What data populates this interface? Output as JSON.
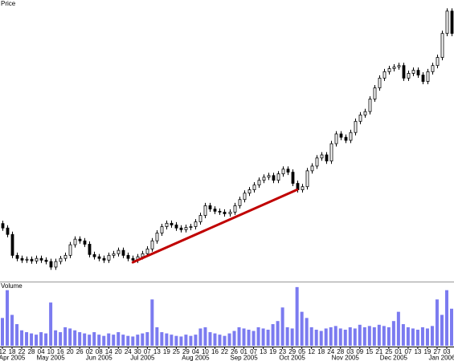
{
  "chart_data": {
    "type": "candlestick",
    "price_label": "Price",
    "volume_label": "Volume",
    "categories": [
      "12",
      null,
      "18",
      null,
      "22",
      null,
      "28",
      null,
      "04",
      null,
      "10",
      null,
      "16",
      null,
      "20",
      null,
      "26",
      null,
      "02",
      null,
      "08",
      null,
      "14",
      null,
      "20",
      null,
      "24",
      null,
      "30",
      null,
      "07",
      null,
      "13",
      null,
      "19",
      null,
      "25",
      null,
      "29",
      null,
      "04",
      null,
      "10",
      null,
      "16",
      null,
      "22",
      null,
      "26",
      null,
      "01",
      null,
      "07",
      null,
      "13",
      null,
      "19",
      null,
      "23",
      null,
      "29",
      null,
      "05",
      null,
      "12",
      null,
      "18",
      null,
      "24",
      null,
      "28",
      null,
      "03",
      null,
      "09",
      null,
      "15",
      null,
      "21",
      null,
      "25",
      null,
      "01",
      null,
      "07",
      null,
      "13",
      null,
      "19",
      null,
      "27",
      null,
      "03",
      null
    ],
    "months": [
      null,
      null,
      "Apr 2005",
      null,
      null,
      null,
      null,
      null,
      null,
      null,
      "May 2005",
      null,
      null,
      null,
      null,
      null,
      null,
      null,
      null,
      null,
      "Jun 2005",
      null,
      null,
      null,
      null,
      null,
      null,
      null,
      null,
      "Jul 2005",
      null,
      null,
      null,
      null,
      null,
      null,
      null,
      null,
      null,
      null,
      "Aug 2005",
      null,
      null,
      null,
      null,
      null,
      null,
      null,
      null,
      null,
      "Sep 2005",
      null,
      null,
      null,
      null,
      null,
      null,
      null,
      null,
      null,
      "Oct 2005",
      null,
      null,
      null,
      null,
      null,
      null,
      null,
      null,
      null,
      null,
      "Nov 2005",
      null,
      null,
      null,
      null,
      null,
      null,
      null,
      null,
      null,
      "Dec 2005",
      null,
      null,
      null,
      null,
      null,
      null,
      null,
      null,
      null,
      "Jan 2006",
      null,
      null
    ],
    "open": [
      20.5,
      18.9,
      16.6,
      9.1,
      8.0,
      7.4,
      7.7,
      7.1,
      8.0,
      7.4,
      6.9,
      4.9,
      6.9,
      8.0,
      9.1,
      12.9,
      14.9,
      14.3,
      13.1,
      9.4,
      8.6,
      8.0,
      7.4,
      9.1,
      9.7,
      10.9,
      9.1,
      8.0,
      7.4,
      8.6,
      9.7,
      11.4,
      14.3,
      17.1,
      19.4,
      20.6,
      20.0,
      18.9,
      18.3,
      19.1,
      19.4,
      21.1,
      23.4,
      26.9,
      25.7,
      24.9,
      24.6,
      24.0,
      24.6,
      26.9,
      29.1,
      31.4,
      32.6,
      34.3,
      36.0,
      37.1,
      37.7,
      36.0,
      38.3,
      40.0,
      38.9,
      34.9,
      32.6,
      33.7,
      39.4,
      41.1,
      44.0,
      45.1,
      42.9,
      49.1,
      52.6,
      51.4,
      50.3,
      53.1,
      57.1,
      59.4,
      60.6,
      65.1,
      69.1,
      72.6,
      74.9,
      76.0,
      76.6,
      77.1,
      72.6,
      74.3,
      75.4,
      73.7,
      71.4,
      74.9,
      77.1,
      80.0,
      88.6,
      96.6
    ],
    "high": [
      21.5,
      19.9,
      17.6,
      10.1,
      9.0,
      8.7,
      8.7,
      9.0,
      9.0,
      8.4,
      7.9,
      7.9,
      8.9,
      10.1,
      13.9,
      15.9,
      15.9,
      15.3,
      14.1,
      10.4,
      9.6,
      9.0,
      10.1,
      10.7,
      11.9,
      11.9,
      10.1,
      9.0,
      9.6,
      10.7,
      12.4,
      15.3,
      18.1,
      20.4,
      21.6,
      21.6,
      21.0,
      19.9,
      20.1,
      20.4,
      22.1,
      24.4,
      27.9,
      27.9,
      26.7,
      25.9,
      25.6,
      25.6,
      27.9,
      30.1,
      32.4,
      33.6,
      35.3,
      37.0,
      38.1,
      38.7,
      38.7,
      39.3,
      41.0,
      41.0,
      39.9,
      35.9,
      34.7,
      40.4,
      42.1,
      45.0,
      46.1,
      46.1,
      50.1,
      53.6,
      53.6,
      52.4,
      54.1,
      58.1,
      60.4,
      61.6,
      66.1,
      70.1,
      73.6,
      75.9,
      77.0,
      77.6,
      78.1,
      78.1,
      75.3,
      76.4,
      76.4,
      74.7,
      75.9,
      78.1,
      81.0,
      89.6,
      97.6,
      97.6
    ],
    "low": [
      17.9,
      15.6,
      8.1,
      7.0,
      6.4,
      6.4,
      6.1,
      6.1,
      6.4,
      5.9,
      3.9,
      3.9,
      5.9,
      7.0,
      8.1,
      11.9,
      13.3,
      12.1,
      8.4,
      7.6,
      7.0,
      6.4,
      6.4,
      8.1,
      8.7,
      8.1,
      7.0,
      6.4,
      6.4,
      7.6,
      8.7,
      10.4,
      13.3,
      16.1,
      18.4,
      19.0,
      17.9,
      17.3,
      17.3,
      18.1,
      18.4,
      20.1,
      22.4,
      24.7,
      23.9,
      23.6,
      23.0,
      23.0,
      23.6,
      25.9,
      28.1,
      30.4,
      31.6,
      33.3,
      35.0,
      36.1,
      35.0,
      35.0,
      37.3,
      37.9,
      33.9,
      31.6,
      31.6,
      32.7,
      38.4,
      40.1,
      43.0,
      41.9,
      41.9,
      48.1,
      50.4,
      49.3,
      49.3,
      52.1,
      56.1,
      58.4,
      59.6,
      64.1,
      68.1,
      71.6,
      73.9,
      75.0,
      75.6,
      71.6,
      71.6,
      73.3,
      72.7,
      70.4,
      70.4,
      73.9,
      76.1,
      79.0,
      87.6,
      87.6
    ],
    "close": [
      18.9,
      16.6,
      9.1,
      8.0,
      7.4,
      7.7,
      7.1,
      8.0,
      7.4,
      6.9,
      4.9,
      6.9,
      8.0,
      9.1,
      12.9,
      14.9,
      14.3,
      13.1,
      9.4,
      8.6,
      8.0,
      7.4,
      9.1,
      9.7,
      10.9,
      9.1,
      8.0,
      7.4,
      8.6,
      9.7,
      11.4,
      14.3,
      17.1,
      19.4,
      20.6,
      20.0,
      18.9,
      18.3,
      19.1,
      19.4,
      21.1,
      23.4,
      26.9,
      25.7,
      24.9,
      24.6,
      24.0,
      24.6,
      26.9,
      29.1,
      31.4,
      32.6,
      34.3,
      36.0,
      37.1,
      37.7,
      36.0,
      38.3,
      40.0,
      38.9,
      34.9,
      32.6,
      33.7,
      39.4,
      41.1,
      44.0,
      45.1,
      42.9,
      49.1,
      52.6,
      51.4,
      50.3,
      53.1,
      57.1,
      59.4,
      60.6,
      65.1,
      69.1,
      72.6,
      74.9,
      76.0,
      76.6,
      77.1,
      72.6,
      74.3,
      75.4,
      73.7,
      71.4,
      74.9,
      77.1,
      80.0,
      88.6,
      96.6,
      88.6
    ],
    "volume": [
      45,
      90,
      50,
      35,
      25,
      22,
      20,
      18,
      22,
      20,
      70,
      25,
      22,
      30,
      28,
      25,
      22,
      20,
      18,
      22,
      18,
      16,
      20,
      18,
      22,
      18,
      16,
      15,
      18,
      20,
      22,
      75,
      30,
      22,
      20,
      18,
      16,
      15,
      18,
      16,
      18,
      28,
      30,
      22,
      20,
      18,
      16,
      20,
      24,
      30,
      28,
      26,
      24,
      30,
      28,
      26,
      35,
      40,
      62,
      30,
      28,
      95,
      55,
      45,
      30,
      26,
      24,
      28,
      30,
      32,
      28,
      26,
      30,
      28,
      34,
      30,
      32,
      30,
      34,
      32,
      30,
      40,
      55,
      35,
      30,
      28,
      26,
      30,
      28,
      32,
      75,
      50,
      90,
      60
    ],
    "ylim": [
      0,
      100
    ],
    "volume_ylim": [
      0,
      100
    ],
    "up_color": "#ffffff",
    "down_color": "#000000",
    "outline_color": "#000000",
    "volume_color": "#7b7bf0",
    "trendline": {
      "color": "#c00000",
      "from": {
        "index": 27,
        "price": 6.6
      },
      "to": {
        "index": 61,
        "price": 32.6
      }
    }
  }
}
